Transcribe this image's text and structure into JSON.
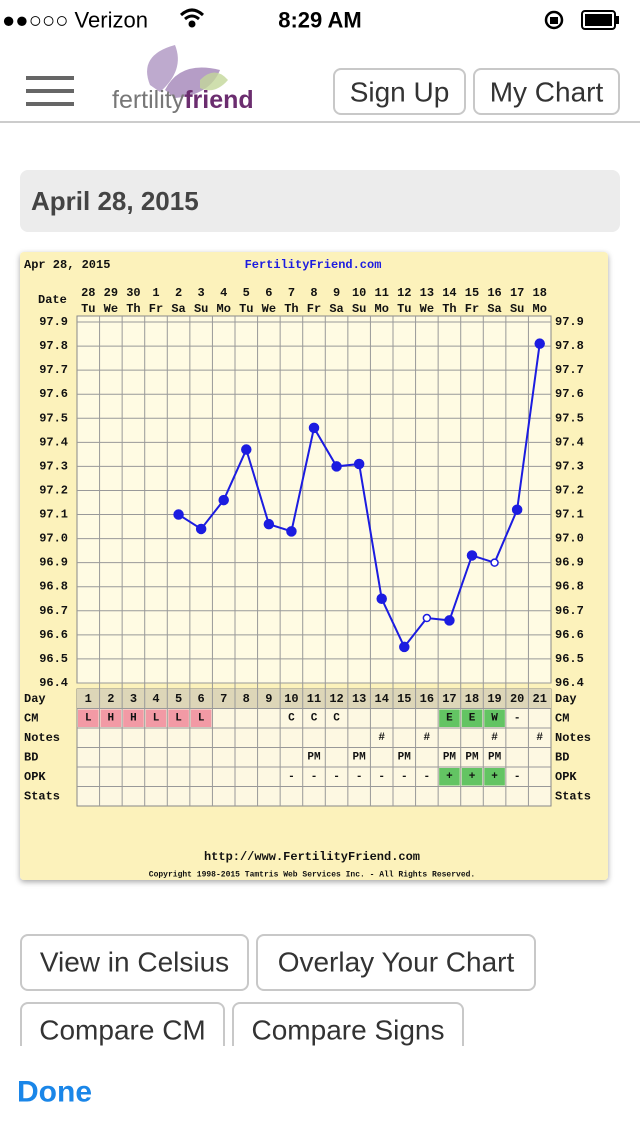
{
  "status_bar": {
    "carrier": "●●○○○ Verizon",
    "time": "8:29 AM"
  },
  "nav": {
    "logo_a": "fertility",
    "logo_b": "friend",
    "buttons": [
      "Sign Up",
      "My Chart"
    ]
  },
  "date_header": "April 28, 2015",
  "chart_data": {
    "type": "line",
    "title": "FertilityFriend.com",
    "subtitle": "Apr 28, 2015",
    "date_label": "Date",
    "categories": [
      1,
      2,
      3,
      4,
      5,
      6,
      7,
      8,
      9,
      10,
      11,
      12,
      13,
      14,
      15,
      16,
      17,
      18,
      19,
      20,
      21
    ],
    "dates": [
      28,
      29,
      30,
      1,
      2,
      3,
      4,
      5,
      6,
      7,
      8,
      9,
      10,
      11,
      12,
      13,
      14,
      15,
      16,
      17,
      18
    ],
    "weekdays": [
      "Tu",
      "We",
      "Th",
      "Fr",
      "Sa",
      "Su",
      "Mo",
      "Tu",
      "We",
      "Th",
      "Fr",
      "Sa",
      "Su",
      "Mo",
      "Tu",
      "We",
      "Th",
      "Fr",
      "Sa",
      "Su",
      "Mo"
    ],
    "values": [
      null,
      null,
      null,
      null,
      97.1,
      97.04,
      97.16,
      97.37,
      97.06,
      97.03,
      97.46,
      97.3,
      97.31,
      96.75,
      96.55,
      96.67,
      96.66,
      96.93,
      96.9,
      97.12,
      97.81
    ],
    "markers": [
      null,
      null,
      null,
      null,
      "filled",
      "filled",
      "filled",
      "filled",
      "filled",
      "filled",
      "filled",
      "filled",
      "filled",
      "filled",
      "filled",
      "open",
      "filled",
      "filled",
      "open",
      "filled",
      "filled"
    ],
    "color": "#1c1ce0",
    "ylim": [
      96.4,
      97.9
    ],
    "yticks": [
      96.4,
      96.5,
      96.6,
      96.7,
      96.8,
      96.9,
      {
        "value": 97,
        "label": "97.0"
      },
      97.1,
      97.2,
      97.3,
      97.4,
      97.5,
      97.6,
      97.7,
      97.8,
      97.9
    ],
    "grid": true,
    "day_label": "Day",
    "rows": [
      {
        "label": "CM",
        "cells": [
          "L",
          "H",
          "H",
          "L",
          "L",
          "L",
          null,
          null,
          null,
          "C",
          "C",
          "C",
          null,
          null,
          null,
          null,
          "E",
          "E",
          "W",
          "-",
          null
        ],
        "fills": [
          "#f29aa5",
          "#f29aa5",
          "#f29aa5",
          "#f29aa5",
          "#f29aa5",
          "#f29aa5",
          null,
          null,
          null,
          null,
          null,
          null,
          null,
          null,
          null,
          null,
          "#63c463",
          "#63c463",
          "#63c463",
          null,
          null
        ]
      },
      {
        "label": "Notes",
        "cells": [
          null,
          null,
          null,
          null,
          null,
          null,
          null,
          null,
          null,
          null,
          null,
          null,
          null,
          "#",
          null,
          "#",
          null,
          null,
          "#",
          null,
          "#"
        ]
      },
      {
        "label": "BD",
        "cells": [
          null,
          null,
          null,
          null,
          null,
          null,
          null,
          null,
          null,
          null,
          "PM",
          null,
          "PM",
          null,
          "PM",
          null,
          "PM",
          "PM",
          "PM",
          null,
          null
        ]
      },
      {
        "label": "OPK",
        "cells": [
          null,
          null,
          null,
          null,
          null,
          null,
          null,
          null,
          null,
          "-",
          "-",
          "-",
          "-",
          "-",
          "-",
          "-",
          "+",
          "+",
          "+",
          "-",
          null
        ],
        "fills": [
          null,
          null,
          null,
          null,
          null,
          null,
          null,
          null,
          null,
          null,
          null,
          null,
          null,
          null,
          null,
          null,
          "#63c463",
          "#63c463",
          "#63c463",
          null,
          null
        ]
      },
      {
        "label": "Stats",
        "cells": [
          null,
          null,
          null,
          null,
          null,
          null,
          null,
          null,
          null,
          null,
          null,
          null,
          null,
          null,
          null,
          null,
          null,
          null,
          null,
          null,
          null
        ]
      }
    ],
    "footer_url": "http://www.FertilityFriend.com",
    "copyright": "Copyright 1998-2015 Tamtris Web Services Inc. - All Rights Reserved."
  },
  "buttons": [
    "View in Celsius",
    "Overlay Your Chart",
    "Compare CM",
    "Compare Signs"
  ],
  "done": "Done"
}
